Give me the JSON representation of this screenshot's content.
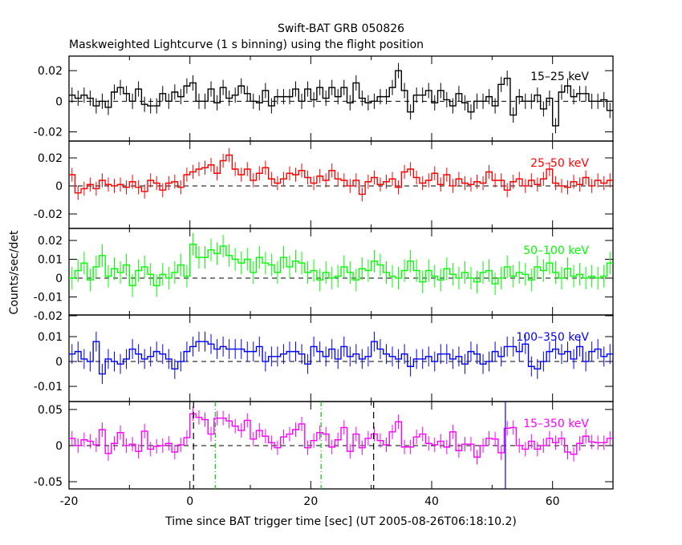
{
  "chart_data": {
    "type": "line",
    "title": "Swift-BAT GRB 050826",
    "subtitle": "Maskweighted Lightcurve (1 s binning) using the flight position",
    "xlabel": "Time since BAT trigger time [sec] (UT 2005-08-26T06:18:10.2)",
    "ylabel": "Counts/sec/det",
    "xlim": [
      -20,
      70
    ],
    "x_ticks": [
      "-20",
      "0",
      "20",
      "40",
      "60"
    ],
    "bin_start": -20,
    "bin_width": 1,
    "panels": [
      {
        "name": "15-25 keV",
        "label": "15–25 keV",
        "color": "#000000",
        "ylim": [
          -0.026,
          0.0295
        ],
        "y_ticks": [
          "0.02",
          "0",
          "-0.02"
        ],
        "y_tick_values": [
          0.02,
          0,
          -0.02
        ],
        "error": 0.005,
        "values": [
          0.004,
          0.002,
          0.004,
          0.002,
          -0.003,
          0.0,
          -0.004,
          0.006,
          0.009,
          0.005,
          0.0,
          0.008,
          -0.002,
          -0.003,
          -0.003,
          0.005,
          0.0,
          0.006,
          0.003,
          0.01,
          0.012,
          0.0,
          0.0,
          0.008,
          -0.001,
          0.009,
          0.002,
          0.004,
          0.01,
          0.005,
          0.0,
          -0.001,
          0.007,
          -0.003,
          0.003,
          0.003,
          0.003,
          0.008,
          0.0,
          0.008,
          0.001,
          0.009,
          0.002,
          0.009,
          0.003,
          0.009,
          -0.001,
          0.012,
          0.002,
          -0.001,
          0.0,
          0.003,
          0.003,
          0.009,
          0.02,
          0.007,
          -0.007,
          0.004,
          0.004,
          0.007,
          -0.001,
          0.007,
          0.001,
          -0.003,
          0.005,
          -0.001,
          -0.007,
          0.0,
          0.0,
          0.003,
          -0.003,
          0.011,
          0.015,
          -0.009,
          0.003,
          0.0,
          0.0,
          0.004,
          -0.005,
          0.002,
          -0.016,
          0.006,
          0.01,
          0.003,
          0.005,
          0.005,
          0.0,
          0.0,
          0.001,
          -0.006
        ]
      },
      {
        "name": "25-50 keV",
        "label": "25–50 keV",
        "color": "#ff0000",
        "ylim": [
          -0.0303,
          0.032
        ],
        "y_ticks": [
          "0.02",
          "0",
          "-0.02"
        ],
        "y_tick_values": [
          0.02,
          0,
          -0.02
        ],
        "error": 0.005,
        "values": [
          0.008,
          -0.005,
          -0.002,
          0.001,
          -0.002,
          0.004,
          0.001,
          0.0,
          0.001,
          -0.001,
          0.003,
          -0.001,
          -0.004,
          0.004,
          0.002,
          -0.003,
          0.002,
          0.003,
          -0.001,
          0.008,
          0.01,
          0.012,
          0.013,
          0.015,
          0.009,
          0.018,
          0.022,
          0.012,
          0.008,
          0.012,
          0.004,
          0.009,
          0.013,
          0.005,
          0.002,
          0.005,
          0.009,
          0.008,
          0.011,
          0.006,
          0.002,
          0.007,
          0.004,
          0.011,
          0.005,
          0.004,
          0.0,
          0.004,
          -0.006,
          0.003,
          0.006,
          0.001,
          0.003,
          0.005,
          -0.001,
          0.01,
          0.012,
          0.006,
          0.002,
          0.004,
          0.009,
          0.001,
          0.008,
          0.0,
          0.005,
          0.002,
          0.001,
          0.003,
          0.002,
          0.01,
          0.004,
          0.004,
          -0.003,
          0.003,
          0.005,
          0.0,
          0.004,
          0.001,
          0.005,
          0.012,
          0.002,
          0.0,
          -0.001,
          0.003,
          0.001,
          0.006,
          0.0,
          0.004,
          0.002,
          0.004
        ]
      },
      {
        "name": "50-100 keV",
        "label": "50–100 keV",
        "color": "#00ff00",
        "ylim": [
          -0.0196,
          0.0264
        ],
        "y_ticks": [
          "0.02",
          "0.01",
          "0",
          "-0.01",
          "-0.02"
        ],
        "y_tick_values": [
          0.02,
          0.01,
          0,
          -0.01,
          -0.02
        ],
        "error": 0.006,
        "values": [
          0.0,
          0.004,
          0.008,
          -0.001,
          0.006,
          0.012,
          0.001,
          0.005,
          0.003,
          0.007,
          -0.004,
          0.004,
          0.006,
          0.002,
          -0.004,
          0.002,
          0.0,
          0.003,
          0.007,
          0.001,
          0.018,
          0.011,
          0.011,
          0.015,
          0.013,
          0.017,
          0.012,
          0.01,
          0.008,
          0.01,
          0.003,
          0.011,
          0.008,
          0.007,
          0.003,
          0.011,
          0.006,
          0.009,
          0.008,
          0.003,
          0.004,
          -0.001,
          0.003,
          0.0,
          0.001,
          0.006,
          0.003,
          -0.001,
          0.005,
          0.004,
          0.009,
          0.007,
          0.003,
          0.001,
          0.0,
          0.004,
          0.009,
          0.004,
          -0.002,
          0.004,
          0.001,
          -0.001,
          0.005,
          0.002,
          0.0,
          0.003,
          0.0,
          -0.002,
          0.003,
          0.004,
          -0.003,
          0.0,
          0.006,
          0.001,
          0.003,
          0.002,
          -0.001,
          0.006,
          0.004,
          0.008,
          0.003,
          0.0,
          0.005,
          0.001,
          0.002,
          0.0,
          0.001,
          0.0,
          0.001,
          0.008
        ]
      },
      {
        "name": "100-350 keV",
        "label": "100–350 keV",
        "color": "#0000ff",
        "ylim": [
          -0.0161,
          0.0187
        ],
        "y_ticks": [
          "0.01",
          "0",
          "-0.01"
        ],
        "y_tick_values": [
          0.01,
          0,
          -0.01
        ],
        "error": 0.004,
        "values": [
          0.003,
          0.004,
          0.001,
          0.0,
          0.008,
          -0.005,
          0.001,
          0.0,
          -0.001,
          0.001,
          0.005,
          0.003,
          0.001,
          0.002,
          0.004,
          0.003,
          0.001,
          -0.003,
          0.0,
          0.004,
          0.006,
          0.008,
          0.008,
          0.007,
          0.005,
          0.006,
          0.005,
          0.005,
          0.005,
          0.004,
          0.004,
          0.006,
          0.0,
          0.002,
          0.002,
          0.003,
          0.004,
          0.004,
          0.003,
          -0.001,
          0.006,
          0.004,
          0.002,
          0.005,
          0.001,
          0.006,
          0.002,
          0.003,
          0.001,
          0.002,
          0.008,
          0.005,
          0.003,
          0.002,
          0.001,
          0.003,
          -0.002,
          0.001,
          0.001,
          0.002,
          0.0,
          0.003,
          0.003,
          0.001,
          0.002,
          -0.001,
          0.004,
          0.003,
          -0.001,
          0.0,
          0.004,
          0.002,
          0.006,
          0.006,
          0.004,
          0.007,
          -0.002,
          -0.003,
          0.0,
          0.004,
          0.005,
          0.003,
          0.004,
          0.001,
          0.006,
          0.0,
          0.004,
          0.005,
          0.002,
          0.003
        ]
      },
      {
        "name": "15-350 keV",
        "label": "15–350 keV",
        "color": "#ff00ff",
        "ylim": [
          -0.06,
          0.061
        ],
        "y_ticks": [
          "0.05",
          "0",
          "-0.05"
        ],
        "y_tick_values": [
          0.05,
          0,
          -0.05
        ],
        "error": 0.01,
        "values": [
          0.01,
          0.0,
          0.008,
          0.006,
          0.001,
          0.022,
          -0.011,
          0.003,
          0.018,
          0.0,
          0.002,
          -0.008,
          0.02,
          -0.005,
          -0.001,
          0.0,
          0.003,
          -0.009,
          0.001,
          0.011,
          0.044,
          0.039,
          0.036,
          0.016,
          0.038,
          0.038,
          0.034,
          0.027,
          0.021,
          0.035,
          0.009,
          0.021,
          0.013,
          0.004,
          -0.003,
          0.012,
          0.016,
          0.022,
          0.03,
          -0.003,
          0.007,
          0.018,
          0.016,
          -0.002,
          0.008,
          0.025,
          -0.008,
          0.016,
          -0.003,
          0.01,
          0.016,
          0.007,
          0.001,
          0.019,
          0.033,
          -0.002,
          -0.002,
          0.012,
          0.016,
          0.003,
          0.001,
          0.006,
          -0.002,
          0.019,
          -0.007,
          0.002,
          0.002,
          -0.016,
          0.0,
          0.01,
          0.009,
          -0.01,
          0.024,
          0.025,
          0.0,
          -0.005,
          0.006,
          -0.005,
          0.0,
          0.01,
          0.004,
          0.01,
          -0.009,
          -0.012,
          0.003,
          0.013,
          0.005,
          0.004,
          0.004,
          0.01
        ],
        "markers": [
          {
            "t": 0.6,
            "color": "#000000",
            "style": "dashed"
          },
          {
            "t": 30.4,
            "color": "#000000",
            "style": "dashed"
          },
          {
            "t": 4.2,
            "color": "#00cc00",
            "style": "dash-dot"
          },
          {
            "t": 21.7,
            "color": "#00cc00",
            "style": "dash-dot"
          },
          {
            "t": 52.2,
            "color": "#0000ff",
            "style": "solid"
          }
        ]
      }
    ],
    "grid": false
  }
}
